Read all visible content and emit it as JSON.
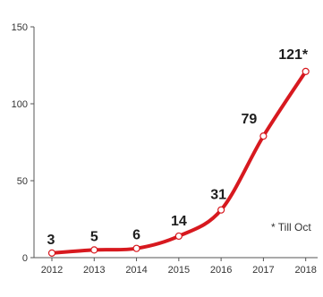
{
  "chart_data": {
    "type": "line",
    "title": "",
    "xlabel": "",
    "ylabel": "",
    "x": [
      "2012",
      "2013",
      "2014",
      "2015",
      "2016",
      "2017",
      "2018"
    ],
    "series": [
      {
        "values": [
          3,
          5,
          6,
          14,
          31,
          79,
          121
        ],
        "labels": [
          "3",
          "5",
          "6",
          "14",
          "31",
          "79",
          "121*"
        ]
      }
    ],
    "ylim": [
      0,
      150
    ],
    "yticks": [
      0,
      50,
      100,
      150
    ],
    "grid": false,
    "legend": "none",
    "line_color": "#d7191f",
    "note": "* Till Oct"
  }
}
